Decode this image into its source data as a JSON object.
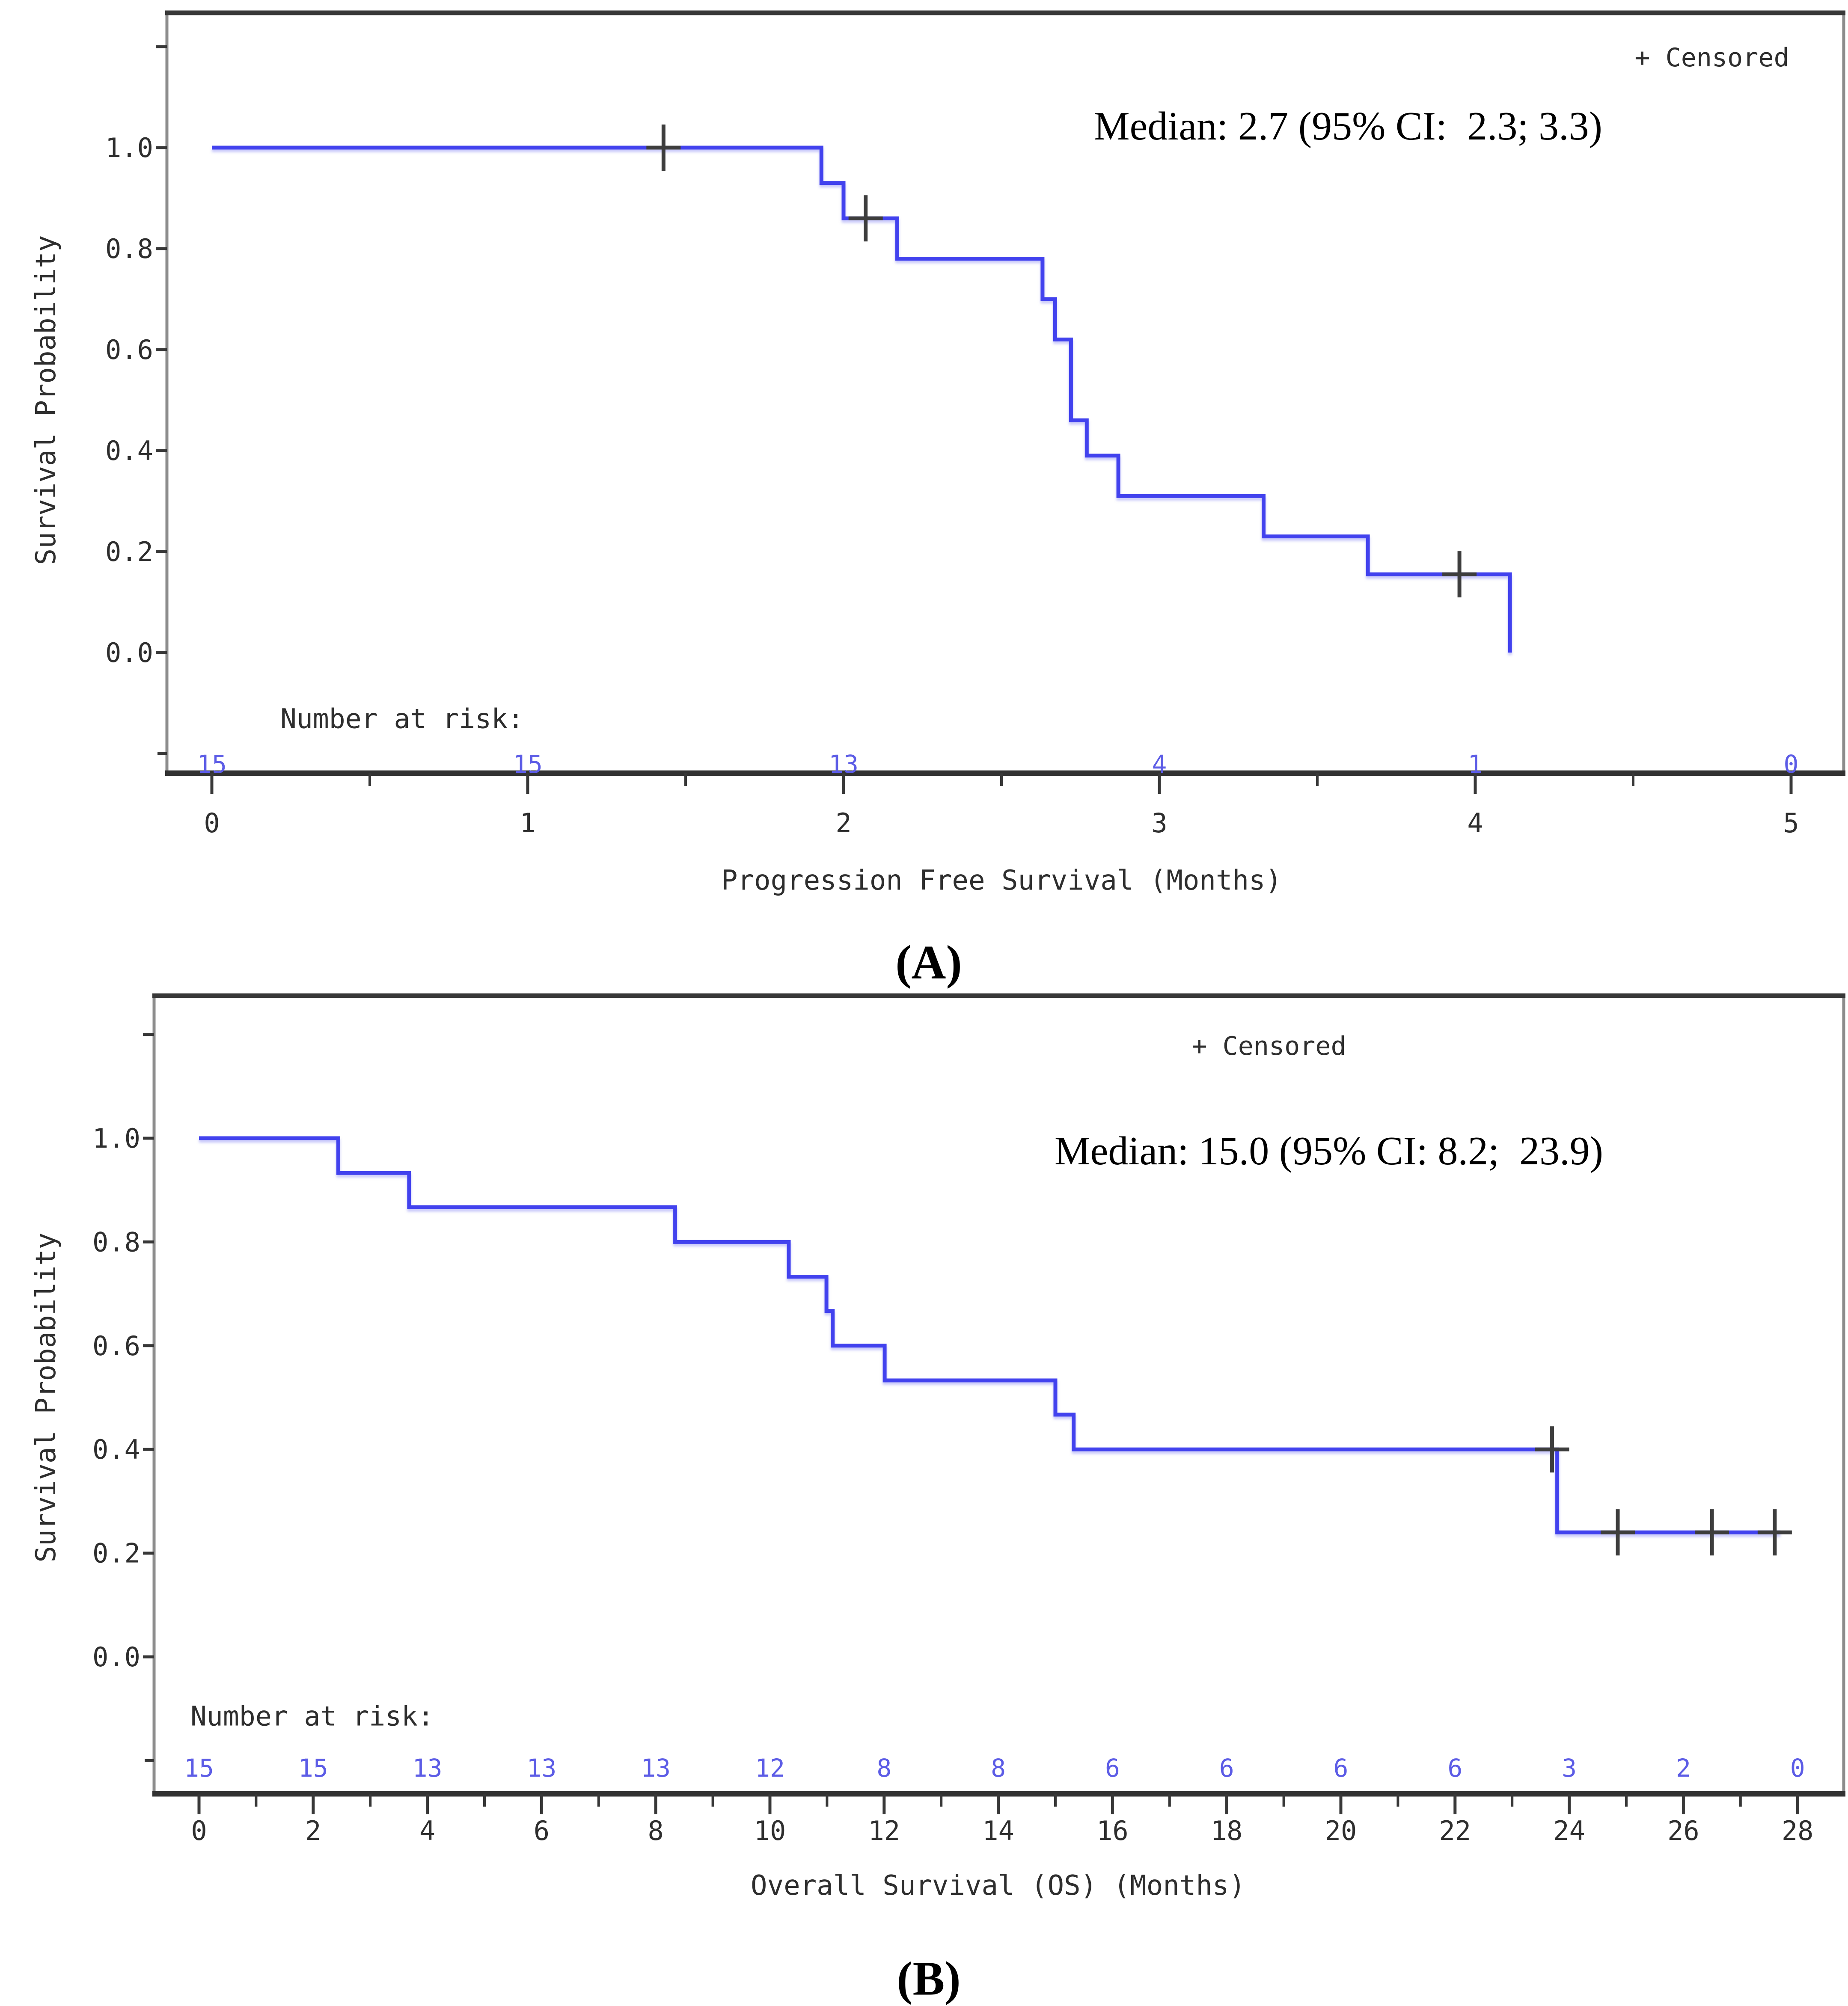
{
  "figure": {
    "caption_a": "(A)",
    "caption_b": "(B)"
  },
  "colors": {
    "curve": "#4242ee",
    "risk_numbers": "#5c5ce6",
    "axis_frame": "#8c8c8c",
    "axis_dark": "#383838",
    "tick_text": "#2e2e2e",
    "censor_mark": "#3d3d3d",
    "annotation_text": "#000000"
  },
  "chart_data": [
    {
      "id": "pfs",
      "type": "line",
      "subtype": "kaplan_meier_step",
      "title": "",
      "xlabel": "Progression Free Survival (Months)",
      "ylabel": "Survival Probability",
      "legend_label": "+ Censored",
      "legend_position": "top-right-inside",
      "annotation": "Median: 2.7 (95% CI:  2.3; 3.3)",
      "risk_label": "Number at risk:",
      "xlim": [
        0,
        5
      ],
      "ylim": [
        0,
        1.2
      ],
      "grid": false,
      "xticks": [
        {
          "v": 0,
          "label": "0"
        },
        {
          "v": 1,
          "label": "1"
        },
        {
          "v": 2,
          "label": "2"
        },
        {
          "v": 3,
          "label": "3"
        },
        {
          "v": 4,
          "label": "4"
        },
        {
          "v": 5,
          "label": "5"
        }
      ],
      "xticks_minor": [
        0.5,
        1.5,
        2.5,
        3.5,
        4.5
      ],
      "yticks": [
        {
          "v": 0.0,
          "label": "0.0"
        },
        {
          "v": 0.2,
          "label": "0.2"
        },
        {
          "v": 0.4,
          "label": "0.4"
        },
        {
          "v": 0.6,
          "label": "0.6"
        },
        {
          "v": 0.8,
          "label": "0.8"
        },
        {
          "v": 1.0,
          "label": "1.0"
        }
      ],
      "yticks_unlabeled": [
        1.2,
        -0.2
      ],
      "segments": [
        [
          0.0,
          1.93,
          1.0
        ],
        [
          1.93,
          2.0,
          0.93
        ],
        [
          2.0,
          2.17,
          0.86
        ],
        [
          2.17,
          2.63,
          0.78
        ],
        [
          2.63,
          2.67,
          0.7
        ],
        [
          2.67,
          2.72,
          0.62
        ],
        [
          2.72,
          2.77,
          0.46
        ],
        [
          2.77,
          2.87,
          0.39
        ],
        [
          2.87,
          3.33,
          0.31
        ],
        [
          3.33,
          3.66,
          0.23
        ],
        [
          3.66,
          4.11,
          0.155
        ]
      ],
      "drop_to_zero_at": 4.11,
      "censored": [
        [
          1.43,
          1.0
        ],
        [
          2.07,
          0.86
        ],
        [
          3.95,
          0.155
        ]
      ],
      "risk_times": [
        0,
        1,
        2,
        3,
        4,
        5
      ],
      "risk_counts": [
        "15",
        "15",
        "13",
        "4",
        "1",
        "0"
      ]
    },
    {
      "id": "os",
      "type": "line",
      "subtype": "kaplan_meier_step",
      "title": "",
      "xlabel": "Overall Survival (OS) (Months)",
      "ylabel": "Survival Probability",
      "legend_label": "+ Censored",
      "legend_position": "top-center-inside",
      "annotation": "Median: 15.0 (95% CI: 8.2;  23.9)",
      "risk_label": "Number at risk:",
      "xlim": [
        0,
        28
      ],
      "ylim": [
        0,
        1.2
      ],
      "grid": false,
      "xticks": [
        {
          "v": 0,
          "label": "0"
        },
        {
          "v": 2,
          "label": "2"
        },
        {
          "v": 4,
          "label": "4"
        },
        {
          "v": 6,
          "label": "6"
        },
        {
          "v": 8,
          "label": "8"
        },
        {
          "v": 10,
          "label": "10"
        },
        {
          "v": 12,
          "label": "12"
        },
        {
          "v": 14,
          "label": "14"
        },
        {
          "v": 16,
          "label": "16"
        },
        {
          "v": 18,
          "label": "18"
        },
        {
          "v": 20,
          "label": "20"
        },
        {
          "v": 22,
          "label": "22"
        },
        {
          "v": 24,
          "label": "24"
        },
        {
          "v": 26,
          "label": "26"
        },
        {
          "v": 28,
          "label": "28"
        }
      ],
      "xticks_minor": [
        1,
        3,
        5,
        7,
        9,
        11,
        13,
        15,
        17,
        19,
        21,
        23,
        25,
        27
      ],
      "yticks": [
        {
          "v": 0.0,
          "label": "0.0"
        },
        {
          "v": 0.2,
          "label": "0.2"
        },
        {
          "v": 0.4,
          "label": "0.4"
        },
        {
          "v": 0.6,
          "label": "0.6"
        },
        {
          "v": 0.8,
          "label": "0.8"
        },
        {
          "v": 1.0,
          "label": "1.0"
        }
      ],
      "yticks_unlabeled": [
        1.2,
        -0.2
      ],
      "segments": [
        [
          0.0,
          2.44,
          1.0
        ],
        [
          2.44,
          3.68,
          0.933
        ],
        [
          3.68,
          8.34,
          0.867
        ],
        [
          8.34,
          10.33,
          0.8
        ],
        [
          10.33,
          10.99,
          0.733
        ],
        [
          10.99,
          11.1,
          0.667
        ],
        [
          11.1,
          12.01,
          0.6
        ],
        [
          12.01,
          15.0,
          0.533
        ],
        [
          15.0,
          15.32,
          0.467
        ],
        [
          15.32,
          23.79,
          0.4
        ],
        [
          23.79,
          27.7,
          0.24
        ]
      ],
      "drop_to_zero_at": null,
      "censored": [
        [
          23.7,
          0.4
        ],
        [
          24.85,
          0.24
        ],
        [
          26.5,
          0.24
        ],
        [
          27.6,
          0.24
        ]
      ],
      "risk_times": [
        0,
        2,
        4,
        6,
        8,
        10,
        12,
        14,
        16,
        18,
        20,
        22,
        24,
        26,
        28
      ],
      "risk_counts": [
        "15",
        "15",
        "13",
        "13",
        "13",
        "12",
        "8",
        "8",
        "6",
        "6",
        "6",
        "6",
        "3",
        "2",
        "0"
      ]
    }
  ]
}
